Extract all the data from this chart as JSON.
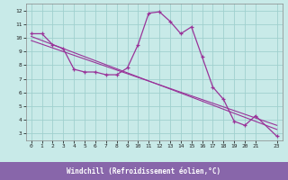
{
  "title": "",
  "xlabel": "Windchill (Refroidissement éolien,°C)",
  "bg_color": "#c8eae8",
  "grid_color": "#a0d0ce",
  "line_color": "#993399",
  "xlabel_bg": "#8866aa",
  "xlabel_fg": "#ffffff",
  "xlim": [
    -0.5,
    23.5
  ],
  "ylim": [
    2.5,
    12.5
  ],
  "xticks": [
    0,
    1,
    2,
    3,
    4,
    5,
    6,
    7,
    8,
    9,
    10,
    11,
    12,
    13,
    14,
    15,
    16,
    17,
    18,
    19,
    20,
    21,
    23
  ],
  "yticks": [
    3,
    4,
    5,
    6,
    7,
    8,
    9,
    10,
    11,
    12
  ],
  "line1_x": [
    0,
    1,
    2,
    3,
    4,
    5,
    6,
    7,
    8,
    9,
    10,
    11,
    12,
    13,
    14,
    15,
    16,
    17,
    18,
    19,
    20,
    21,
    23
  ],
  "line1_y": [
    10.3,
    10.3,
    9.5,
    9.2,
    7.7,
    7.5,
    7.5,
    7.3,
    7.3,
    7.8,
    9.5,
    11.8,
    11.9,
    11.2,
    10.3,
    10.8,
    8.6,
    6.4,
    5.5,
    3.9,
    3.6,
    4.3,
    2.8
  ],
  "line2_x": [
    0,
    23
  ],
  "line2_y": [
    10.1,
    3.3
  ],
  "line3_x": [
    0,
    23
  ],
  "line3_y": [
    9.8,
    3.6
  ],
  "marker": "+"
}
